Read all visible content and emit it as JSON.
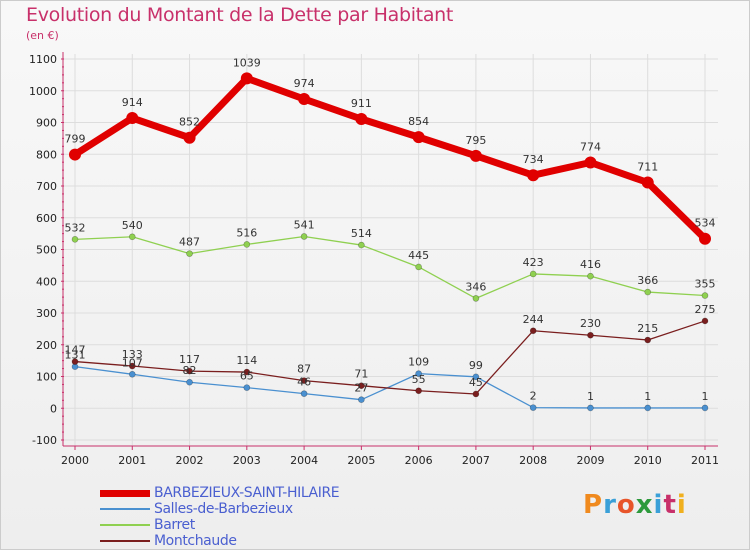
{
  "title": "Evolution du Montant de la Dette par Habitant",
  "subtitle": "(en €)",
  "logo": {
    "text": "Proxiti",
    "colors": [
      "#f08a1e",
      "#3aa0d8",
      "#e8552a",
      "#2d9a3c",
      "#3aa0d8",
      "#c8306a",
      "#f0b01e"
    ]
  },
  "chart_data": {
    "type": "line",
    "x": [
      "2000",
      "2001",
      "2002",
      "2003",
      "2004",
      "2005",
      "2006",
      "2007",
      "2008",
      "2009",
      "2010",
      "2011"
    ],
    "ylim": [
      -100,
      1100
    ],
    "yticks": [
      "-100",
      "0",
      "100",
      "200",
      "300",
      "400",
      "500",
      "600",
      "700",
      "800",
      "900",
      "1000",
      "1100"
    ],
    "grid": true,
    "legend_position": "bottom-left",
    "series": [
      {
        "name": "BARBEZIEUX-SAINT-HILAIRE",
        "color": "#e00000",
        "values": [
          799,
          914,
          852,
          1039,
          974,
          911,
          854,
          795,
          734,
          774,
          711,
          534
        ],
        "labels": [
          "799",
          "914",
          "852",
          "1039",
          "974",
          "911",
          "854",
          "795",
          "734",
          "774",
          "711",
          "534"
        ]
      },
      {
        "name": "Salles-de-Barbezieux",
        "color": "#4a90d0",
        "values": [
          131,
          107,
          82,
          65,
          46,
          27,
          109,
          99,
          2,
          1,
          1,
          1
        ],
        "labels": [
          "131",
          "107",
          "82",
          "65",
          "46",
          "27",
          "109",
          "99",
          "2",
          "1",
          "1",
          "1"
        ]
      },
      {
        "name": "Barret",
        "color": "#8fd050",
        "values": [
          532,
          540,
          487,
          516,
          541,
          514,
          445,
          346,
          423,
          416,
          366,
          355
        ],
        "labels": [
          "532",
          "540",
          "487",
          "516",
          "541",
          "514",
          "445",
          "346",
          "423",
          "416",
          "366",
          "355"
        ]
      },
      {
        "name": "Montchaude",
        "color": "#7a1e1e",
        "values": [
          147,
          133,
          117,
          114,
          87,
          71,
          55,
          45,
          244,
          230,
          215,
          275
        ],
        "labels": [
          "147",
          "133",
          "117",
          "114",
          "87",
          "71",
          "55",
          "45",
          "244",
          "230",
          "215",
          "275"
        ]
      }
    ]
  }
}
